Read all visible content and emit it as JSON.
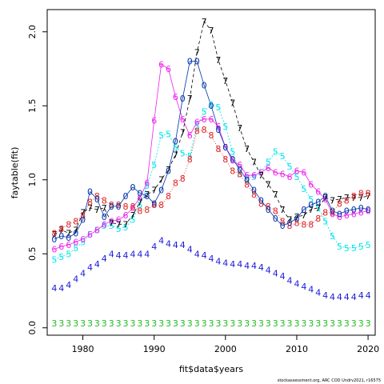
{
  "chart_data": {
    "type": "line",
    "xlabel": "fit$data$years",
    "ylabel": "faytable(fit)",
    "xlim": [
      1975,
      2021
    ],
    "ylim": [
      -0.05,
      2.15
    ],
    "x_ticks": [
      "1980",
      "1990",
      "2000",
      "2010",
      "2020"
    ],
    "y_ticks": [
      "0.0",
      "0.5",
      "1.0",
      "1.5",
      "2.0"
    ],
    "x": [
      1976,
      1977,
      1978,
      1979,
      1980,
      1981,
      1982,
      1983,
      1984,
      1985,
      1986,
      1987,
      1988,
      1989,
      1990,
      1991,
      1992,
      1993,
      1994,
      1995,
      1996,
      1997,
      1998,
      1999,
      2000,
      2001,
      2002,
      2003,
      2004,
      2005,
      2006,
      2007,
      2008,
      2009,
      2010,
      2011,
      2012,
      2013,
      2014,
      2015,
      2016,
      2017,
      2018,
      2019,
      2020
    ],
    "series": [
      {
        "name": "3",
        "color": "#22bb22",
        "line": false,
        "values": [
          0.03,
          0.03,
          0.03,
          0.03,
          0.03,
          0.03,
          0.03,
          0.03,
          0.03,
          0.03,
          0.03,
          0.03,
          0.03,
          0.03,
          0.03,
          0.03,
          0.03,
          0.03,
          0.03,
          0.03,
          0.03,
          0.03,
          0.03,
          0.03,
          0.03,
          0.03,
          0.03,
          0.03,
          0.03,
          0.03,
          0.03,
          0.03,
          0.03,
          0.03,
          0.03,
          0.03,
          0.03,
          0.03,
          0.03,
          0.03,
          0.03,
          0.03,
          0.03,
          0.03,
          0.03
        ]
      },
      {
        "name": "4",
        "color": "#1a1adb",
        "line": false,
        "values": [
          0.27,
          0.27,
          0.29,
          0.33,
          0.37,
          0.41,
          0.43,
          0.47,
          0.5,
          0.49,
          0.49,
          0.5,
          0.5,
          0.5,
          0.55,
          0.59,
          0.57,
          0.56,
          0.56,
          0.53,
          0.5,
          0.49,
          0.47,
          0.45,
          0.44,
          0.43,
          0.43,
          0.42,
          0.42,
          0.41,
          0.39,
          0.37,
          0.35,
          0.32,
          0.3,
          0.28,
          0.26,
          0.24,
          0.22,
          0.21,
          0.21,
          0.21,
          0.21,
          0.22,
          0.22
        ]
      },
      {
        "name": "5",
        "color": "#00e5ee",
        "line": true,
        "values": [
          0.46,
          0.48,
          0.5,
          0.54,
          0.58,
          0.63,
          0.66,
          0.69,
          0.69,
          0.67,
          0.68,
          0.73,
          0.83,
          0.96,
          1.1,
          1.3,
          1.31,
          1.22,
          1.18,
          1.16,
          1.36,
          1.46,
          1.51,
          1.49,
          1.36,
          1.19,
          1.04,
          1.01,
          1.02,
          1.05,
          1.12,
          1.19,
          1.16,
          1.09,
          1.02,
          0.94,
          0.87,
          0.81,
          0.72,
          0.62,
          0.55,
          0.54,
          0.54,
          0.55,
          0.56
        ]
      },
      {
        "name": "6",
        "color": "#ee22ee",
        "line": true,
        "values": [
          0.53,
          0.55,
          0.56,
          0.58,
          0.6,
          0.63,
          0.66,
          0.7,
          0.72,
          0.73,
          0.76,
          0.81,
          0.88,
          0.98,
          1.4,
          1.78,
          1.75,
          1.56,
          1.41,
          1.3,
          1.39,
          1.41,
          1.41,
          1.36,
          1.22,
          1.13,
          1.1,
          1.03,
          1.03,
          1.05,
          1.08,
          1.05,
          1.04,
          1.02,
          1.06,
          1.05,
          0.97,
          0.92,
          0.87,
          0.77,
          0.75,
          0.76,
          0.77,
          0.78,
          0.79
        ]
      },
      {
        "name": "7",
        "color": "#000000",
        "line": true,
        "values": [
          0.63,
          0.66,
          0.64,
          0.66,
          0.78,
          0.81,
          0.8,
          0.81,
          0.71,
          0.7,
          0.7,
          0.76,
          0.85,
          0.9,
          0.93,
          1.0,
          1.07,
          1.17,
          1.32,
          1.55,
          1.86,
          2.07,
          2.01,
          1.81,
          1.67,
          1.52,
          1.35,
          1.21,
          1.12,
          1.03,
          0.97,
          0.9,
          0.8,
          0.73,
          0.75,
          0.76,
          0.8,
          0.81,
          0.88,
          0.86,
          0.87,
          0.88,
          0.88,
          0.88,
          0.89
        ]
      },
      {
        "name": "8",
        "color": "#dd2222",
        "line": true,
        "values": [
          0.64,
          0.67,
          0.7,
          0.72,
          0.76,
          0.85,
          0.89,
          0.86,
          0.83,
          0.83,
          0.82,
          0.82,
          0.79,
          0.8,
          0.83,
          0.83,
          0.89,
          0.98,
          1.01,
          1.14,
          1.33,
          1.34,
          1.3,
          1.21,
          1.14,
          1.06,
          1.04,
          0.97,
          0.9,
          0.84,
          0.82,
          0.79,
          0.72,
          0.69,
          0.71,
          0.7,
          0.7,
          0.74,
          0.78,
          0.78,
          0.84,
          0.86,
          0.89,
          0.91,
          0.91
        ]
      },
      {
        "name": "0",
        "color": "#0033aa",
        "line": true,
        "values": [
          0.6,
          0.62,
          0.61,
          0.64,
          0.73,
          0.92,
          0.87,
          0.75,
          0.82,
          0.82,
          0.89,
          0.95,
          0.91,
          0.89,
          0.84,
          0.93,
          1.06,
          1.26,
          1.55,
          1.8,
          1.8,
          1.64,
          1.5,
          1.34,
          1.22,
          1.14,
          1.07,
          1.0,
          0.93,
          0.86,
          0.8,
          0.74,
          0.69,
          0.71,
          0.74,
          0.8,
          0.83,
          0.85,
          0.89,
          0.79,
          0.77,
          0.79,
          0.8,
          0.81,
          0.8
        ]
      }
    ]
  },
  "footer": "stockassessment.org, ARC COD Undrv2021, r16575"
}
